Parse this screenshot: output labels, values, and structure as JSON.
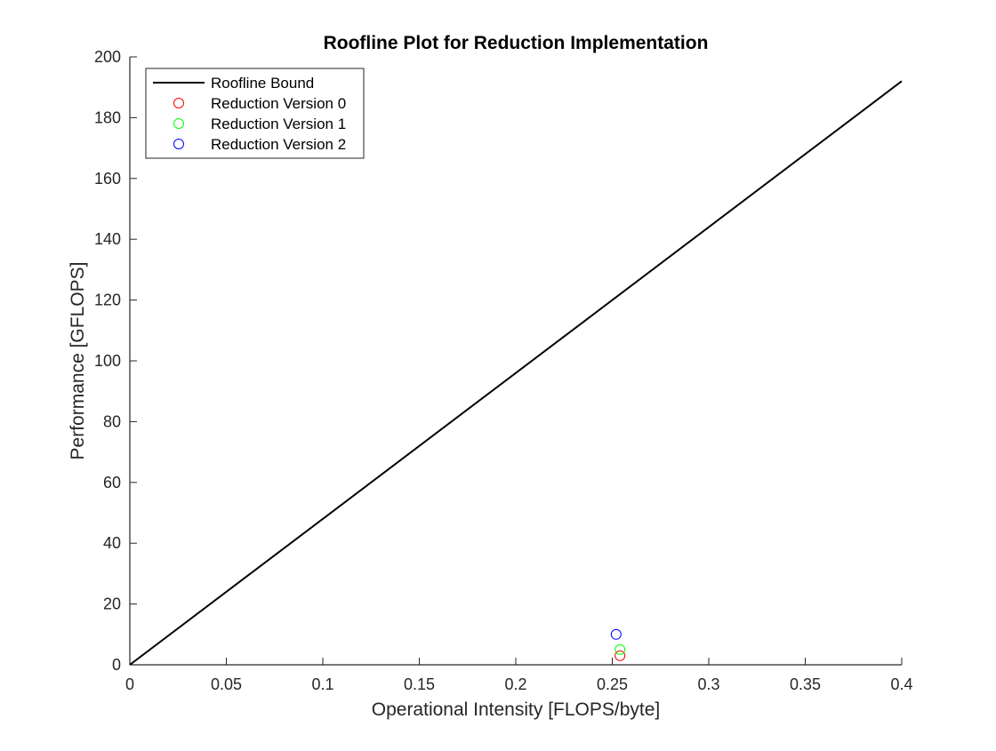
{
  "chart_data": {
    "type": "scatter",
    "title": "Roofline Plot for Reduction Implementation",
    "xlabel": "Operational Intensity [FLOPS/byte]",
    "ylabel": "Performance [GFLOPS]",
    "xlim": [
      0,
      0.4
    ],
    "ylim": [
      0,
      200
    ],
    "xticks": [
      0,
      0.05,
      0.1,
      0.15,
      0.2,
      0.25,
      0.3,
      0.35,
      0.4
    ],
    "xtick_labels": [
      "0",
      "0.05",
      "0.1",
      "0.15",
      "0.2",
      "0.25",
      "0.3",
      "0.35",
      "0.4"
    ],
    "yticks": [
      0,
      20,
      40,
      60,
      80,
      100,
      120,
      140,
      160,
      180,
      200
    ],
    "ytick_labels": [
      "0",
      "20",
      "40",
      "60",
      "80",
      "100",
      "120",
      "140",
      "160",
      "180",
      "200"
    ],
    "grid": false,
    "legend_position": "top-left",
    "series": [
      {
        "name": "Roofline Bound",
        "kind": "line",
        "color": "#000000",
        "points": [
          [
            0,
            0
          ],
          [
            0.4,
            192
          ]
        ]
      },
      {
        "name": "Reduction Version 0",
        "kind": "marker",
        "marker": "circle",
        "color": "#ff0000",
        "points": [
          [
            0.254,
            3
          ]
        ]
      },
      {
        "name": "Reduction Version 1",
        "kind": "marker",
        "marker": "circle",
        "color": "#00ff00",
        "points": [
          [
            0.254,
            5
          ]
        ]
      },
      {
        "name": "Reduction Version 2",
        "kind": "marker",
        "marker": "circle",
        "color": "#0000ff",
        "points": [
          [
            0.252,
            10
          ]
        ]
      }
    ]
  }
}
